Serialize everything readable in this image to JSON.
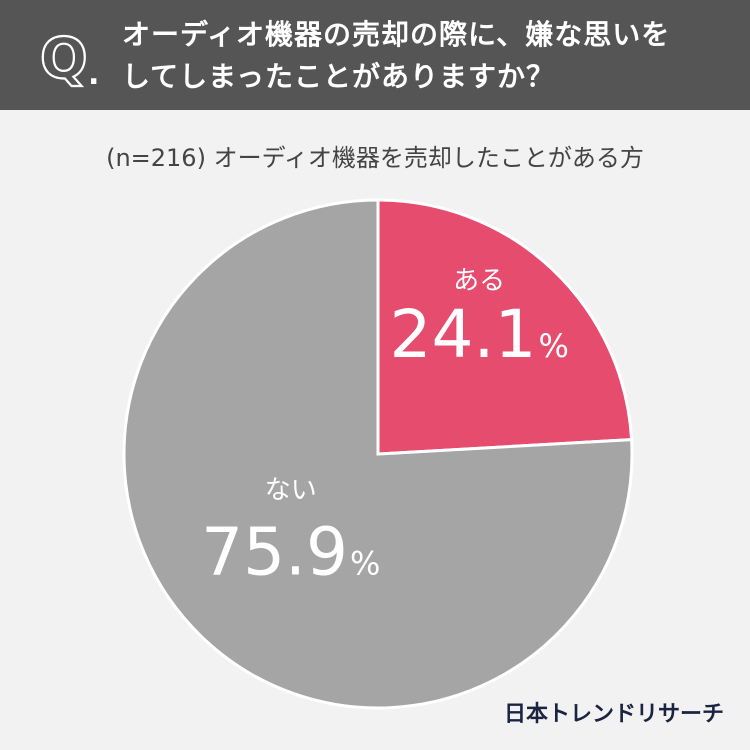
{
  "header": {
    "q_letter": "Q",
    "q_dot": ".",
    "question_line1": "オーディオ機器の売却の際に、嫌な思いを",
    "question_line2": "してしまったことがありますか？"
  },
  "subtitle": {
    "sample": "(n=216)",
    "description": "オーディオ機器を売却したことがある方"
  },
  "colors": {
    "header_bg": "#555555",
    "yes": "#e64c6e",
    "no": "#a5a5a5",
    "background": "#f2f2f2"
  },
  "chart_data": {
    "type": "pie",
    "slices": [
      {
        "label": "ある",
        "value": 24.1,
        "display": "24.1",
        "unit": "%",
        "color": "#e64c6e"
      },
      {
        "label": "ない",
        "value": 75.9,
        "display": "75.9",
        "unit": "%",
        "color": "#a5a5a5"
      }
    ]
  },
  "brand": "日本トレンドリサーチ"
}
